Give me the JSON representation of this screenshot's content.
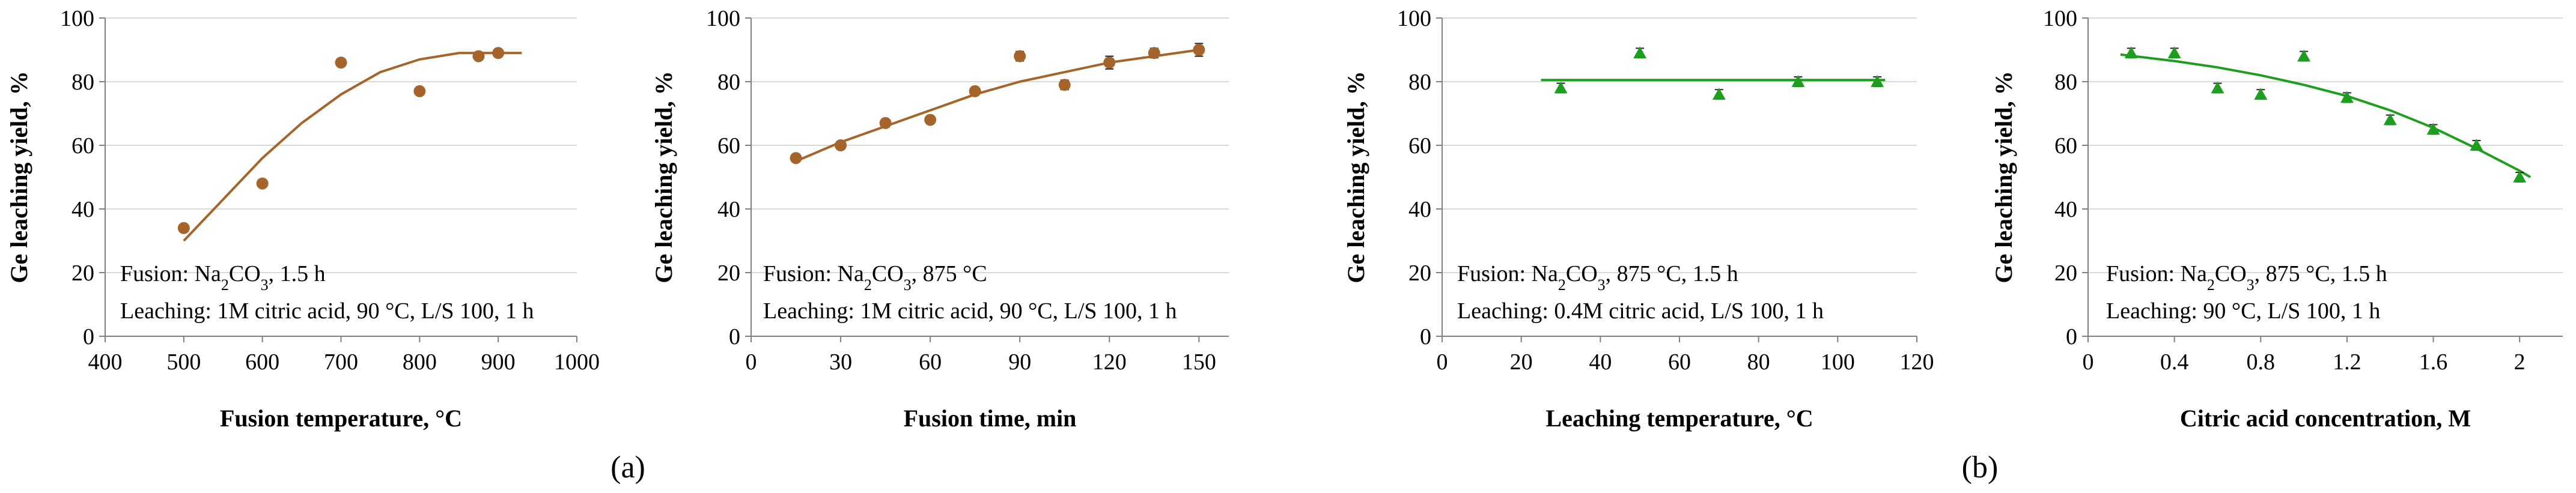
{
  "figure": {
    "panel_labels": [
      "(a)",
      "(b)"
    ]
  },
  "chart_data": [
    {
      "type": "scatter",
      "color": "#A5642A",
      "marker": "circle",
      "xlabel": "Fusion temperature, °C",
      "ylabel": "Ge leaching yield, %",
      "xlim": [
        400,
        1000
      ],
      "ylim": [
        0,
        100
      ],
      "xticks": [
        400,
        500,
        600,
        700,
        800,
        900,
        1000
      ],
      "yticks": [
        0,
        20,
        40,
        60,
        80,
        100
      ],
      "xtick_labels": [
        "400",
        "500",
        "600",
        "700",
        "800",
        "900",
        "1000"
      ],
      "ytick_labels": [
        "0",
        "20",
        "40",
        "60",
        "80",
        "100"
      ],
      "points": [
        {
          "x": 500,
          "y": 34
        },
        {
          "x": 600,
          "y": 48
        },
        {
          "x": 700,
          "y": 86
        },
        {
          "x": 800,
          "y": 77
        },
        {
          "x": 875,
          "y": 88
        },
        {
          "x": 900,
          "y": 89
        }
      ],
      "trend": [
        [
          500,
          30
        ],
        [
          550,
          43
        ],
        [
          600,
          56
        ],
        [
          650,
          67
        ],
        [
          700,
          76
        ],
        [
          750,
          83
        ],
        [
          800,
          87
        ],
        [
          850,
          89
        ],
        [
          900,
          89
        ],
        [
          930,
          89
        ]
      ],
      "annotation": {
        "line1_prefix": "Fusion: Na",
        "line1_sub1": "2",
        "line1_mid": "CO",
        "line1_sub2": "3",
        "line1_suffix": ", 1.5 h",
        "line2": "Leaching: 1M citric acid, 90 °C, L/S 100, 1 h"
      }
    },
    {
      "type": "scatter",
      "color": "#A5642A",
      "marker": "circle",
      "xlabel": "Fusion time, min",
      "ylabel": "Ge leaching yield, %",
      "xlim": [
        0,
        160
      ],
      "ylim": [
        0,
        100
      ],
      "xticks": [
        0,
        30,
        60,
        90,
        120,
        150
      ],
      "yticks": [
        0,
        20,
        40,
        60,
        80,
        100
      ],
      "xtick_labels": [
        "0",
        "30",
        "60",
        "90",
        "120",
        "150"
      ],
      "ytick_labels": [
        "0",
        "20",
        "40",
        "60",
        "80",
        "100"
      ],
      "points": [
        {
          "x": 15,
          "y": 56,
          "err": 1
        },
        {
          "x": 30,
          "y": 60,
          "err": 1
        },
        {
          "x": 45,
          "y": 67,
          "err": 1
        },
        {
          "x": 60,
          "y": 68,
          "err": 1
        },
        {
          "x": 75,
          "y": 77,
          "err": 1
        },
        {
          "x": 90,
          "y": 88,
          "err": 1.5
        },
        {
          "x": 105,
          "y": 79,
          "err": 1.5
        },
        {
          "x": 120,
          "y": 86,
          "err": 2
        },
        {
          "x": 135,
          "y": 89,
          "err": 1.5
        },
        {
          "x": 150,
          "y": 90,
          "err": 2
        }
      ],
      "trend": [
        [
          15,
          55
        ],
        [
          30,
          61
        ],
        [
          45,
          66
        ],
        [
          60,
          71
        ],
        [
          75,
          76
        ],
        [
          90,
          80
        ],
        [
          105,
          83
        ],
        [
          120,
          86
        ],
        [
          135,
          88
        ],
        [
          150,
          90
        ]
      ],
      "annotation": {
        "line1_prefix": "Fusion: Na",
        "line1_sub1": "2",
        "line1_mid": "CO",
        "line1_sub2": "3",
        "line1_suffix": ", 875 °C",
        "line2": "Leaching: 1M citric acid, 90 °C, L/S 100, 1 h"
      }
    },
    {
      "type": "scatter",
      "color": "#1E9E1E",
      "marker": "triangle",
      "xlabel": "Leaching temperature, °C",
      "ylabel": "Ge leaching yield, %",
      "xlim": [
        0,
        120
      ],
      "ylim": [
        0,
        100
      ],
      "xticks": [
        0,
        20,
        40,
        60,
        80,
        100,
        120
      ],
      "yticks": [
        0,
        20,
        40,
        60,
        80,
        100
      ],
      "xtick_labels": [
        "0",
        "20",
        "40",
        "60",
        "80",
        "100",
        "120"
      ],
      "ytick_labels": [
        "0",
        "20",
        "40",
        "60",
        "80",
        "100"
      ],
      "points": [
        {
          "x": 30,
          "y": 78,
          "err": 1.5
        },
        {
          "x": 50,
          "y": 89,
          "err": 1.5
        },
        {
          "x": 70,
          "y": 76,
          "err": 1.5
        },
        {
          "x": 90,
          "y": 80,
          "err": 1.5
        },
        {
          "x": 110,
          "y": 80,
          "err": 1.5
        }
      ],
      "trend": [
        [
          25,
          80.5
        ],
        [
          112,
          80.5
        ]
      ],
      "annotation": {
        "line1_prefix": "Fusion: Na",
        "line1_sub1": "2",
        "line1_mid": "CO",
        "line1_sub2": "3",
        "line1_suffix": ", 875 °C, 1.5 h",
        "line2": "Leaching: 0.4M citric acid, L/S 100, 1 h"
      }
    },
    {
      "type": "scatter",
      "color": "#1E9E1E",
      "marker": "triangle",
      "xlabel": "Citric acid concentration, M",
      "ylabel": "Ge leaching yield, %",
      "xlim": [
        0,
        2.2
      ],
      "ylim": [
        0,
        100
      ],
      "xticks": [
        0,
        0.4,
        0.8,
        1.2,
        1.6,
        2.0
      ],
      "yticks": [
        0,
        20,
        40,
        60,
        80,
        100
      ],
      "xtick_labels": [
        "0",
        "0.4",
        "0.8",
        "1.2",
        "1.6",
        "2"
      ],
      "ytick_labels": [
        "0",
        "20",
        "40",
        "60",
        "80",
        "100"
      ],
      "points": [
        {
          "x": 0.2,
          "y": 89,
          "err": 1.5
        },
        {
          "x": 0.4,
          "y": 89,
          "err": 1.5
        },
        {
          "x": 0.6,
          "y": 78,
          "err": 1.5
        },
        {
          "x": 0.8,
          "y": 76,
          "err": 1.5
        },
        {
          "x": 1.0,
          "y": 88,
          "err": 1.5
        },
        {
          "x": 1.2,
          "y": 75,
          "err": 1.5
        },
        {
          "x": 1.4,
          "y": 68,
          "err": 1.5
        },
        {
          "x": 1.6,
          "y": 65,
          "err": 1.5
        },
        {
          "x": 1.8,
          "y": 60,
          "err": 1.5
        },
        {
          "x": 2.0,
          "y": 50,
          "err": 1.5
        }
      ],
      "trend": [
        [
          0.15,
          88.5
        ],
        [
          0.4,
          86.5
        ],
        [
          0.6,
          84.5
        ],
        [
          0.8,
          82
        ],
        [
          1.0,
          79
        ],
        [
          1.2,
          75.5
        ],
        [
          1.4,
          71
        ],
        [
          1.6,
          65.5
        ],
        [
          1.8,
          59
        ],
        [
          2.0,
          52
        ],
        [
          2.05,
          50
        ]
      ],
      "annotation": {
        "line1_prefix": "Fusion: Na",
        "line1_sub1": "2",
        "line1_mid": "CO",
        "line1_sub2": "3",
        "line1_suffix": ", 875 °C, 1.5 h",
        "line2": "Leaching: 90 °C, L/S 100, 1 h"
      }
    }
  ]
}
